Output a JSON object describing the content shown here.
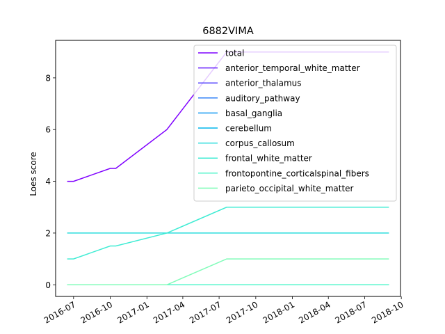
{
  "chart_data": {
    "type": "line",
    "title": "6882VIMA",
    "xlabel": "",
    "ylabel": "Loes score",
    "x": [
      "2016-06-15",
      "2016-07-01",
      "2016-10-01",
      "2016-10-15",
      "2017-02-20",
      "2017-07-20",
      "2018-08-31"
    ],
    "xlim": [
      "2016-05-17",
      "2018-09-29"
    ],
    "ylim": [
      -0.45,
      9.45
    ],
    "x_ticks": [
      "2016-07",
      "2016-10",
      "2017-01",
      "2017-04",
      "2017-07",
      "2017-10",
      "2018-01",
      "2018-04",
      "2018-07",
      "2018-10"
    ],
    "y_ticks": [
      0,
      2,
      4,
      6,
      8
    ],
    "grid": false,
    "legend_placement": "top-right",
    "series": [
      {
        "name": "total",
        "color": "#7f00ff",
        "values": [
          4,
          4,
          4.5,
          4.5,
          6,
          9,
          9
        ]
      },
      {
        "name": "anterior_temporal_white_matter",
        "color": "#6a22fe",
        "values": [
          0,
          0,
          0,
          0,
          0,
          0,
          0
        ]
      },
      {
        "name": "anterior_thalamus",
        "color": "#5544fc",
        "values": [
          0,
          0,
          0,
          0,
          0,
          0,
          0
        ]
      },
      {
        "name": "auditory_pathway",
        "color": "#2c7ef7",
        "values": [
          0,
          0,
          0,
          0,
          0,
          0,
          0
        ]
      },
      {
        "name": "basal_ganglia",
        "color": "#169bf2",
        "values": [
          0,
          0,
          0,
          0,
          0,
          0,
          0
        ]
      },
      {
        "name": "cerebellum",
        "color": "#00b5eb",
        "values": [
          0,
          0,
          0,
          0,
          0,
          0,
          0
        ]
      },
      {
        "name": "corpus_callosum",
        "color": "#2adddd",
        "values": [
          2,
          2,
          2,
          2,
          2,
          2,
          2
        ]
      },
      {
        "name": "frontal_white_matter",
        "color": "#40ecd4",
        "values": [
          1,
          1,
          1.5,
          1.5,
          2,
          3,
          3
        ]
      },
      {
        "name": "frontopontine_corticalspinal_fibers",
        "color": "#54f6cb",
        "values": [
          0,
          0,
          0,
          0,
          0,
          0,
          0
        ]
      },
      {
        "name": "parieto_occipital_white_matter",
        "color": "#80fcb9",
        "values": [
          0,
          0,
          0,
          0,
          0,
          1,
          1
        ]
      }
    ]
  }
}
